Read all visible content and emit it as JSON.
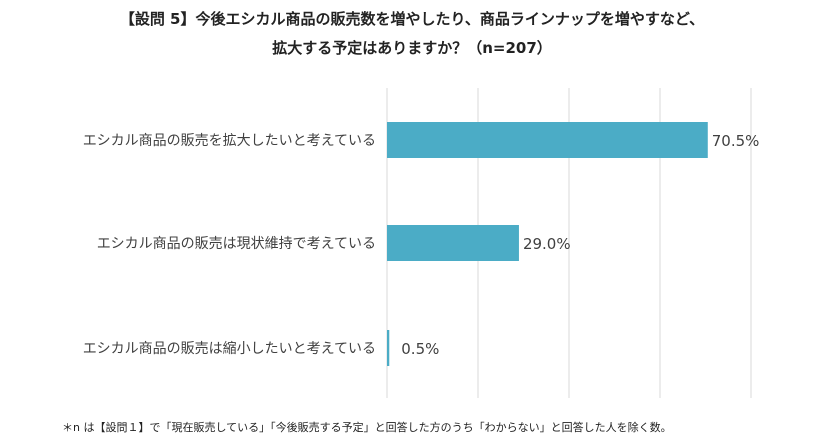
{
  "chart_data": {
    "type": "bar",
    "orientation": "horizontal",
    "title_lines": [
      "【設問 5】今後エシカル商品の販売数を増やしたり、商品ラインナップを増やすなど、",
      "拡大する予定はありますか？（n=207）"
    ],
    "categories": [
      "エシカル商品の販売を拡大したいと考えている",
      "エシカル商品の販売は現状維持で考えている",
      "エシカル商品の販売は縮小したいと考えている"
    ],
    "values": [
      70.5,
      29.0,
      0.5
    ],
    "value_labels": [
      "70.5%",
      "29.0%",
      "0.5%"
    ],
    "xlim": [
      0,
      100
    ],
    "grid": true,
    "bar_color": "#4bacc6"
  },
  "footnote": "＊n は【設問１】で「現在販売している」「今後販売する予定」と回答した方のうち「わからない」と回答した人を除く数。"
}
